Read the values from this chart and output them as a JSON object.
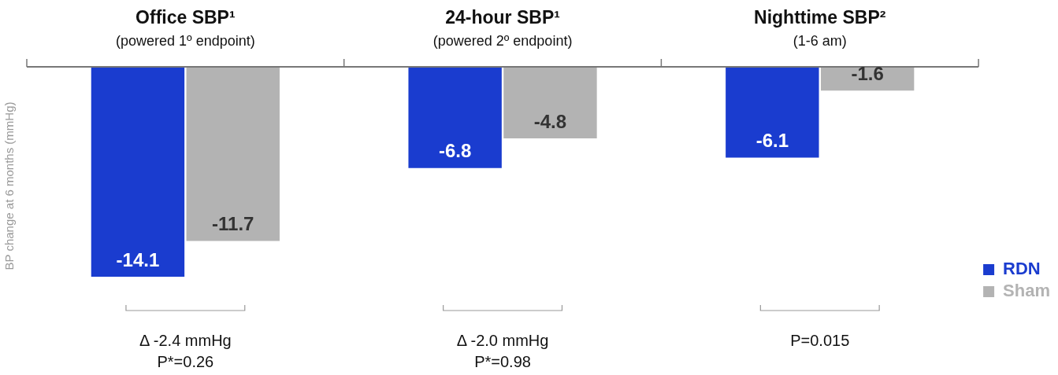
{
  "chart_data": {
    "type": "bar",
    "ylabel": "BP change at 6 months (mmHg)",
    "categories": [
      "Office SBP¹\n(powered 1º endpoint)",
      "24-hour SBP¹\n(powered 2º endpoint)",
      "Nighttime SBP²\n(1-6 am)"
    ],
    "series": [
      {
        "name": "RDN",
        "color": "#1a3ccf",
        "values": [
          -14.1,
          -6.8,
          -6.1
        ]
      },
      {
        "name": "Sham",
        "color": "#b3b3b3",
        "values": [
          -11.7,
          -4.8,
          -1.6
        ]
      }
    ],
    "data_labels": true,
    "legend": "bottom right",
    "grid": false,
    "annotations": [
      "Δ -2.4 mmHg\nP*=0.26",
      "Δ -2.0 mmHg\nP*=0.98",
      "P=0.015"
    ]
  }
}
